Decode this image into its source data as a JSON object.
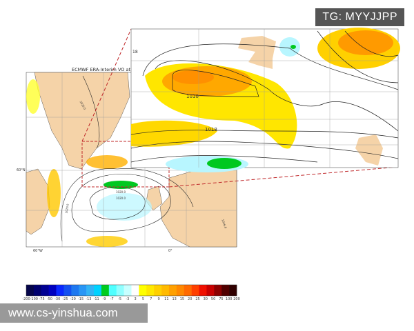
{
  "map": {
    "title": "ECMWF ERA-Interim VO at",
    "lat_label": "60°N",
    "lon_labels": [
      "60°W",
      "0°"
    ],
    "land_color": "#f5d3a8",
    "inset_contour_labels": [
      "18",
      "1010",
      "1018"
    ],
    "main_contour_labels": [
      "1020.0",
      "1020.0",
      "1020.0",
      "1020.0",
      "1016.0"
    ],
    "zoom_box_color": "#c0282a"
  },
  "colorbar": {
    "labels": [
      "-200",
      "-100",
      "-75",
      "-50",
      "-30",
      "-25",
      "-20",
      "-15",
      "-13",
      "-11",
      "-9",
      "-7",
      "-5",
      "-3",
      "3",
      "5",
      "7",
      "9",
      "11",
      "13",
      "15",
      "20",
      "25",
      "30",
      "50",
      "75",
      "100",
      "200"
    ],
    "colors": [
      "#05054a",
      "#00006e",
      "#000093",
      "#0000c0",
      "#0a28ff",
      "#1450f0",
      "#1e78f0",
      "#2896f5",
      "#32b4f5",
      "#00d2ff",
      "#00cc20",
      "#50ffff",
      "#90ffff",
      "#c8ffff",
      "#ffffff",
      "#ffff00",
      "#ffe800",
      "#ffd000",
      "#ffba00",
      "#ffa000",
      "#ff8800",
      "#ff6a00",
      "#ff4000",
      "#f01000",
      "#c80000",
      "#8c0000",
      "#500000",
      "#300000"
    ]
  },
  "watermarks": {
    "top": "TG: MYYJJPP",
    "bottom": "www.cs-yinshua.com"
  }
}
